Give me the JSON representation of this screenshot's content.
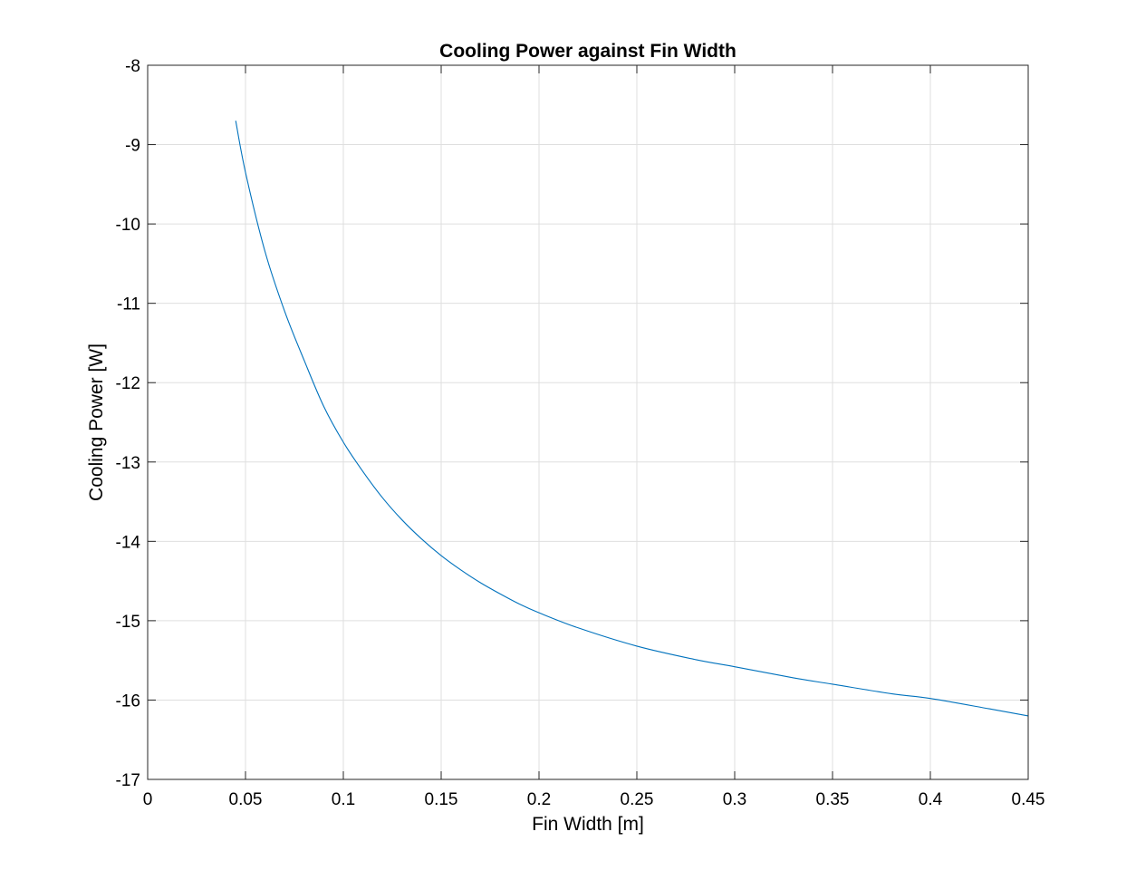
{
  "chart_data": {
    "type": "line",
    "title": "Cooling Power against Fin Width",
    "xlabel": "Fin Width [m]",
    "ylabel": "Cooling Power [W]",
    "xlim": [
      0,
      0.45
    ],
    "ylim": [
      -17,
      -8
    ],
    "xticks": [
      0,
      0.05,
      0.1,
      0.15,
      0.2,
      0.25,
      0.3,
      0.35,
      0.4,
      0.45
    ],
    "xtick_labels": [
      "0",
      "0.05",
      "0.1",
      "0.15",
      "0.2",
      "0.25",
      "0.3",
      "0.35",
      "0.4",
      "0.45"
    ],
    "yticks": [
      -17,
      -16,
      -15,
      -14,
      -13,
      -12,
      -11,
      -10,
      -9,
      -8
    ],
    "ytick_labels": [
      "-17",
      "-16",
      "-15",
      "-14",
      "-13",
      "-12",
      "-11",
      "-10",
      "-9",
      "-8"
    ],
    "grid": true,
    "legend": "none",
    "series": [
      {
        "color": "#0072bd",
        "x": [
          0.045,
          0.05,
          0.06,
          0.07,
          0.08,
          0.09,
          0.1,
          0.11,
          0.12,
          0.13,
          0.14,
          0.15,
          0.16,
          0.17,
          0.18,
          0.19,
          0.2,
          0.22,
          0.25,
          0.28,
          0.3,
          0.33,
          0.35,
          0.38,
          0.4,
          0.43,
          0.45
        ],
        "y": [
          -8.7,
          -9.35,
          -10.35,
          -11.1,
          -11.72,
          -12.3,
          -12.75,
          -13.12,
          -13.45,
          -13.73,
          -13.97,
          -14.18,
          -14.36,
          -14.52,
          -14.66,
          -14.79,
          -14.9,
          -15.09,
          -15.32,
          -15.49,
          -15.58,
          -15.72,
          -15.8,
          -15.92,
          -15.98,
          -16.11,
          -16.2
        ]
      }
    ]
  }
}
